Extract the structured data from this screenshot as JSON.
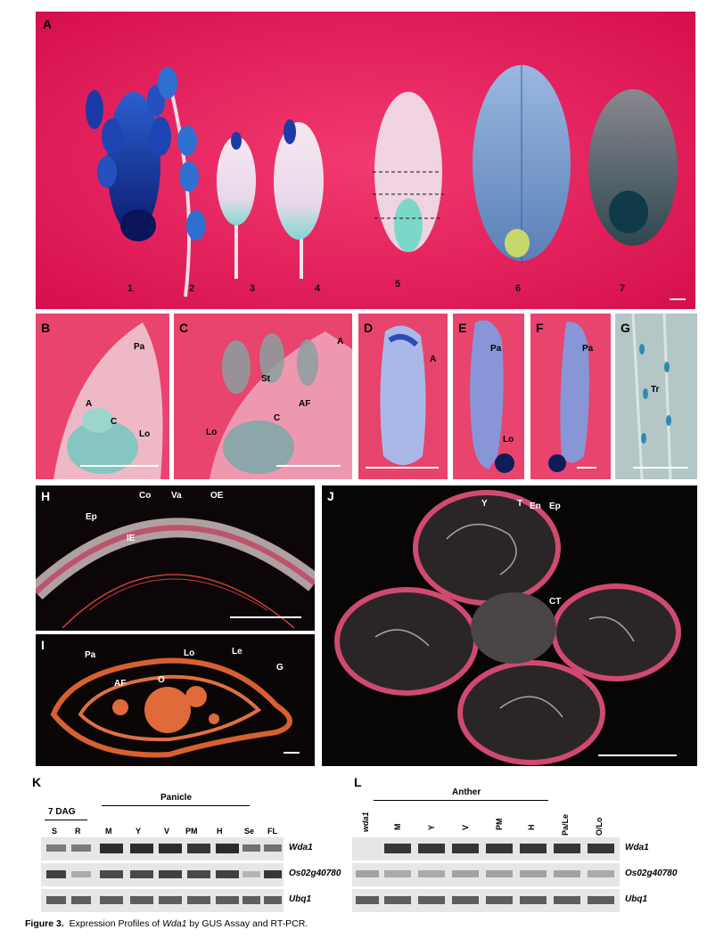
{
  "figure": {
    "panel_letters": [
      "A",
      "B",
      "C",
      "D",
      "E",
      "F",
      "G",
      "H",
      "I",
      "J",
      "K",
      "L"
    ],
    "panel_a": {
      "numbers": [
        "1",
        "2",
        "3",
        "4",
        "5",
        "6",
        "7"
      ]
    },
    "panel_b": {
      "labels": [
        "Pa",
        "A",
        "C",
        "Lo"
      ]
    },
    "panel_c": {
      "labels": [
        "A",
        "St",
        "AF",
        "C",
        "Lo"
      ]
    },
    "panel_d": {
      "labels": [
        "A"
      ]
    },
    "panel_e": {
      "labels": [
        "Pa",
        "Lo"
      ]
    },
    "panel_f": {
      "labels": [
        "Pa"
      ]
    },
    "panel_g": {
      "labels": [
        "Tr"
      ]
    },
    "panel_h": {
      "labels": [
        "Co",
        "Va",
        "OE",
        "Ep",
        "IE"
      ]
    },
    "panel_i": {
      "labels": [
        "Pa",
        "Lo",
        "Le",
        "G",
        "AF",
        "O"
      ]
    },
    "panel_j": {
      "labels": [
        "Y",
        "T",
        "En",
        "Ep",
        "CT"
      ]
    },
    "panel_k": {
      "group_7dag": "7 DAG",
      "group_panicle": "Panicle",
      "lanes": [
        "S",
        "R",
        "M",
        "Y",
        "V",
        "PM",
        "H",
        "Se",
        "FL"
      ],
      "genes": [
        "Wda1",
        "Os02g40780",
        "Ubq1"
      ]
    },
    "panel_l": {
      "group_anther": "Anther",
      "lanes": [
        "wda1",
        "M",
        "Y",
        "V",
        "PM",
        "H",
        "Pa/Le",
        "O/Lo"
      ],
      "genes": [
        "Wda1",
        "Os02g40780",
        "Ubq1"
      ]
    }
  },
  "caption": {
    "prefix": "Figure 3.",
    "text_before_gene": "  Expression Profiles of ",
    "gene": "Wda1",
    "text_after_gene": " by GUS Assay and RT-PCR."
  }
}
